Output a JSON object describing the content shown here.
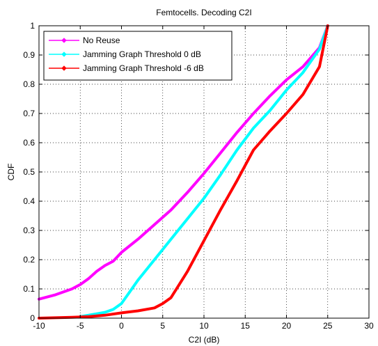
{
  "chart_data": {
    "type": "line",
    "title": "Femtocells. Decoding C2I",
    "xlabel": "C2I (dB)",
    "ylabel": "CDF",
    "xlim": [
      -10,
      30
    ],
    "ylim": [
      0,
      1
    ],
    "xticks": [
      "-10",
      "-5",
      "0",
      "5",
      "10",
      "15",
      "20",
      "25",
      "30"
    ],
    "yticks": [
      "0",
      "0.1",
      "0.2",
      "0.3",
      "0.4",
      "0.5",
      "0.6",
      "0.7",
      "0.8",
      "0.9",
      "1"
    ],
    "grid": true,
    "legend_position": "top-left",
    "series": [
      {
        "name": "No Reuse",
        "color": "#ff00ff",
        "x": [
          -10,
          -8,
          -6,
          -5,
          -4,
          -3,
          -2,
          -1,
          0,
          2,
          4,
          6,
          8,
          10,
          12,
          14,
          16,
          18,
          20,
          22,
          24,
          25
        ],
        "y": [
          0.065,
          0.08,
          0.1,
          0.115,
          0.135,
          0.16,
          0.18,
          0.195,
          0.225,
          0.27,
          0.32,
          0.37,
          0.43,
          0.495,
          0.565,
          0.635,
          0.7,
          0.76,
          0.815,
          0.86,
          0.925,
          1.0
        ]
      },
      {
        "name": "Jamming Graph Threshold 0 dB",
        "color": "#00ffff",
        "x": [
          -5,
          -3,
          -2,
          -1,
          0,
          1,
          2,
          4,
          6,
          8,
          10,
          12,
          14,
          16,
          18,
          20,
          22,
          24,
          25
        ],
        "y": [
          0.005,
          0.015,
          0.02,
          0.03,
          0.05,
          0.09,
          0.13,
          0.2,
          0.27,
          0.34,
          0.41,
          0.49,
          0.575,
          0.65,
          0.71,
          0.78,
          0.84,
          0.92,
          1.0
        ]
      },
      {
        "name": "Jamming Graph Threshold -6 dB",
        "color": "#ff0000",
        "x": [
          -10,
          -6,
          -4,
          -2,
          0,
          2,
          4,
          5,
          6,
          8,
          10,
          12,
          14,
          16,
          18,
          20,
          22,
          24,
          25
        ],
        "y": [
          0.0,
          0.003,
          0.005,
          0.01,
          0.018,
          0.025,
          0.035,
          0.05,
          0.07,
          0.16,
          0.265,
          0.37,
          0.47,
          0.575,
          0.64,
          0.7,
          0.765,
          0.86,
          1.0
        ]
      }
    ]
  }
}
